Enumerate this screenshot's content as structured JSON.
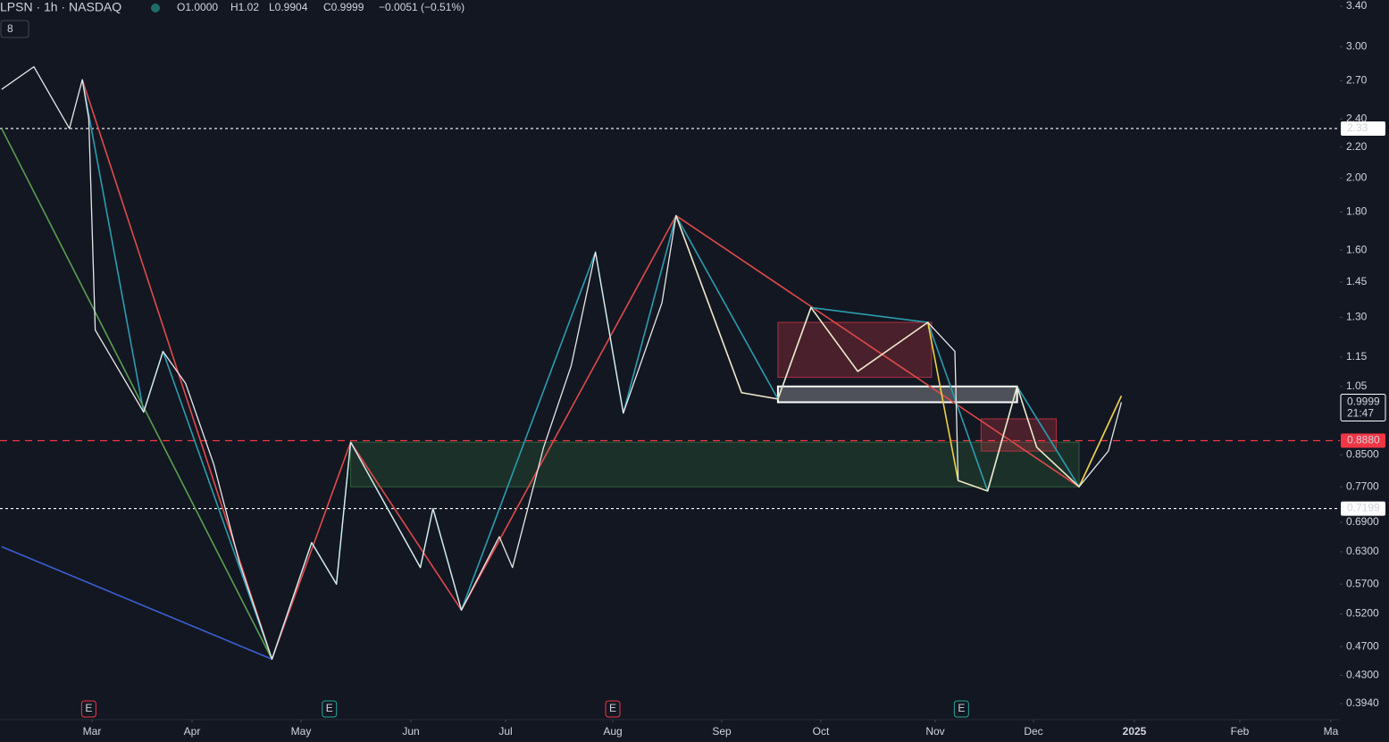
{
  "header": {
    "symbol": "LPSN · 1h · NASDAQ",
    "open": "O1.0000",
    "high": "H1.02",
    "low": "L0.9904",
    "close": "C0.9999",
    "change": "−0.0051 (−0.51%)",
    "indicator_count": "8"
  },
  "chart_data": {
    "type": "line",
    "log_scale": true,
    "ylim": [
      0.394,
      3.4
    ],
    "yticks": [
      {
        "value": 3.4,
        "label": "3.40"
      },
      {
        "value": 3,
        "label": "3.00"
      },
      {
        "value": 2.7,
        "label": "2.70"
      },
      {
        "value": 2.4,
        "label": "2.40"
      },
      {
        "value": 2.2,
        "label": "2.20"
      },
      {
        "value": 2,
        "label": "2.00"
      },
      {
        "value": 1.8,
        "label": "1.80"
      },
      {
        "value": 1.6,
        "label": "1.60"
      },
      1.45,
      {
        "value": 1.3,
        "label": "1.30"
      },
      1.15,
      1.05,
      {
        "value": 0.85,
        "label": "0.8500"
      },
      {
        "value": 0.77,
        "label": "0.7700"
      },
      {
        "value": 0.69,
        "label": "0.6900"
      },
      {
        "value": 0.63,
        "label": "0.6300"
      },
      {
        "value": 0.57,
        "label": "0.5700"
      },
      {
        "value": 0.52,
        "label": "0.5200"
      },
      {
        "value": 0.47,
        "label": "0.4700"
      },
      {
        "value": 0.43,
        "label": "0.4300"
      },
      {
        "value": 0.394,
        "label": "0.3940"
      }
    ],
    "xticks": [
      {
        "value": 61,
        "label": "Mar"
      },
      {
        "value": 92,
        "label": "Apr"
      },
      {
        "value": 122,
        "label": "May"
      },
      {
        "value": 153,
        "label": "Jun"
      },
      {
        "value": 183,
        "label": "Jul"
      },
      {
        "value": 214,
        "label": "Aug"
      },
      {
        "value": 245,
        "label": "Sep"
      },
      {
        "value": 275,
        "label": "Oct"
      },
      {
        "value": 306,
        "label": "Nov"
      },
      {
        "value": 336,
        "label": "Dec"
      },
      {
        "value": 367,
        "label": "2025"
      },
      {
        "value": 398,
        "label": "Feb"
      },
      {
        "value": 427,
        "label": "Ma"
      }
    ],
    "series": [
      {
        "name": "LPSN",
        "color": "#e8e8e8",
        "x": [
          33,
          43,
          54,
          58,
          60,
          62,
          77,
          83,
          90,
          98,
          105,
          114,
          125,
          132,
          136,
          156,
          160,
          169,
          181,
          185,
          194,
          202,
          209,
          217,
          228,
          232,
          251,
          262,
          272,
          285,
          304,
          312,
          313,
          322,
          331,
          337,
          350,
          359,
          363
        ],
        "values": [
          2.63,
          2.82,
          2.33,
          2.71,
          2.4,
          1.25,
          0.97,
          1.17,
          1.06,
          0.825,
          0.61,
          0.452,
          0.648,
          0.57,
          0.884,
          0.6,
          0.72,
          0.526,
          0.66,
          0.6,
          0.87,
          1.12,
          1.59,
          0.967,
          1.36,
          1.78,
          1.03,
          1.01,
          1.34,
          1.1,
          1.28,
          1.17,
          0.785,
          0.76,
          1.05,
          0.87,
          0.77,
          0.86,
          0.9999
        ]
      }
    ],
    "overlays": [
      {
        "color": "#e04a4a",
        "x": [
          58,
          114,
          136,
          169,
          232,
          350,
          363
        ],
        "values": [
          2.71,
          0.452,
          0.884,
          0.526,
          1.78,
          0.77,
          1.02
        ]
      },
      {
        "color": "#2a9db0",
        "x": [
          58,
          77,
          83,
          114,
          125,
          132,
          136,
          156,
          160,
          169,
          209,
          217,
          232,
          262,
          272,
          304,
          322,
          331,
          350,
          363
        ],
        "values": [
          2.71,
          0.97,
          1.17,
          0.452,
          0.648,
          0.57,
          0.884,
          0.6,
          0.72,
          0.526,
          1.59,
          0.967,
          1.78,
          1.01,
          1.34,
          1.28,
          0.76,
          1.05,
          0.77,
          1.02
        ]
      },
      {
        "color": "#5aa050",
        "x": [
          33,
          114
        ],
        "values": [
          2.33,
          0.452
        ]
      },
      {
        "color": "#3a5fd0",
        "x": [
          33,
          114
        ],
        "values": [
          0.64,
          0.452
        ]
      },
      {
        "color": "#f0d040",
        "x": [
          232,
          251,
          262,
          272,
          285,
          304,
          313,
          322,
          331,
          337,
          350,
          363
        ],
        "values": [
          1.78,
          1.03,
          1.01,
          1.34,
          1.1,
          1.28,
          0.785,
          0.76,
          1.05,
          0.87,
          0.77,
          1.02
        ]
      }
    ],
    "zones": [
      {
        "color": "#2e5e3a",
        "x": [
          136,
          350
        ],
        "values": [
          0.884,
          0.77
        ]
      },
      {
        "color": "#ffffff",
        "x": [
          262,
          331
        ],
        "values": [
          1.05,
          1.0
        ]
      },
      {
        "color": "#b03040",
        "x": [
          262,
          305
        ],
        "values": [
          1.28,
          1.08
        ]
      },
      {
        "color": "#b03040",
        "x": [
          320,
          343
        ],
        "values": [
          0.95,
          0.86
        ]
      }
    ],
    "levels": [
      {
        "value": 2.33,
        "color": "#ffffff"
      },
      {
        "value": {
          "value": 0.888,
          "label": "0.8880"
        },
        "color": "#f23645"
      },
      {
        "value": 0.7199,
        "color": "#ffffff"
      }
    ],
    "last_price": 0.9999,
    "countdown": "21:47",
    "events": [
      {
        "label": "E",
        "x": 60
      },
      {
        "label": "E",
        "x": 130
      },
      {
        "label": "E",
        "x": 214
      },
      {
        "label": "E",
        "x": 314
      }
    ]
  }
}
